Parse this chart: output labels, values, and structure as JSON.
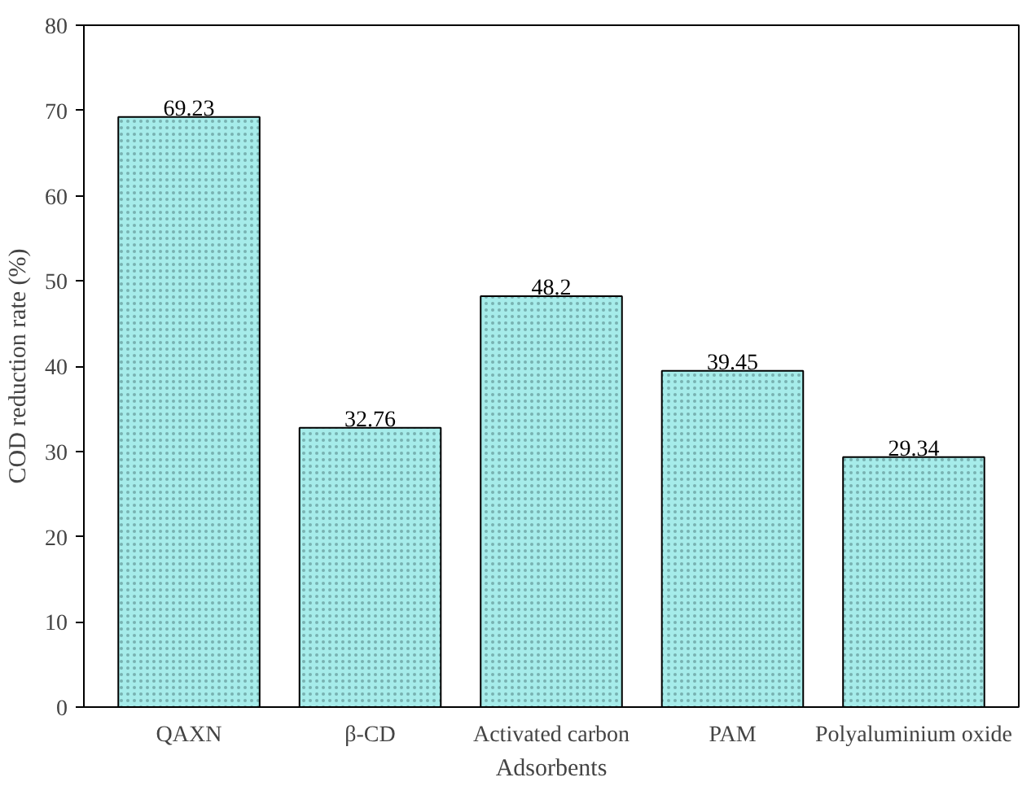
{
  "chart_data": {
    "type": "bar",
    "xlabel": "Adsorbents",
    "ylabel": "COD reduction rate (%)",
    "categories": [
      "QAXN",
      "β-CD",
      "Activated carbon",
      "PAM",
      "Polyaluminium oxide"
    ],
    "values": [
      69.23,
      32.76,
      48.2,
      39.45,
      29.34
    ],
    "color": "#a6ecea",
    "ylim": [
      0,
      80
    ],
    "yticks": [
      0,
      10,
      20,
      30,
      40,
      50,
      60,
      70,
      80
    ],
    "data_labels": true,
    "grid": false
  }
}
